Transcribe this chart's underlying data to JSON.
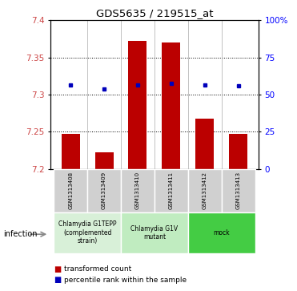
{
  "title": "GDS5635 / 219515_at",
  "samples": [
    "GSM1313408",
    "GSM1313409",
    "GSM1313410",
    "GSM1313411",
    "GSM1313412",
    "GSM1313413"
  ],
  "bar_values": [
    7.247,
    7.222,
    7.372,
    7.37,
    7.268,
    7.247
  ],
  "percentile_values": [
    7.313,
    7.308,
    7.313,
    7.315,
    7.313,
    7.312
  ],
  "bar_bottom": 7.2,
  "ylim": [
    7.2,
    7.4
  ],
  "yticks_left": [
    7.2,
    7.25,
    7.3,
    7.35,
    7.4
  ],
  "yticks_right": [
    0,
    25,
    50,
    75,
    100
  ],
  "yticks_right_vals": [
    7.2,
    7.25,
    7.3,
    7.35,
    7.4
  ],
  "bar_color": "#bb0000",
  "percentile_color": "#0000bb",
  "groups": [
    {
      "label": "Chlamydia G1TEPP\n(complemented\nstrain)",
      "start": 0,
      "end": 1,
      "color": "#d8f0d8"
    },
    {
      "label": "Chlamydia G1V\nmutant",
      "start": 2,
      "end": 3,
      "color": "#c0ecc0"
    },
    {
      "label": "mock",
      "start": 4,
      "end": 5,
      "color": "#44cc44"
    }
  ],
  "infection_label": "infection",
  "legend_bar_label": "transformed count",
  "legend_point_label": "percentile rank within the sample",
  "bar_width": 0.55,
  "figsize": [
    3.71,
    3.63
  ],
  "dpi": 100
}
